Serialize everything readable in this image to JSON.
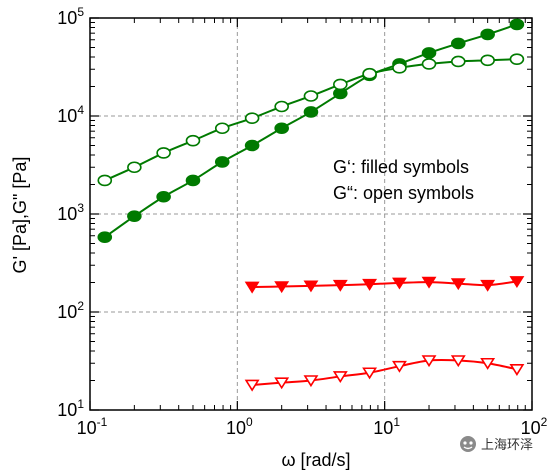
{
  "chart_data": {
    "type": "scatter",
    "title": "",
    "xlabel": "ω  [rad/s]",
    "ylabel": "G'  [Pa],G\"  [Pa]",
    "xscale": "log",
    "yscale": "log",
    "xlim": [
      0.1,
      100
    ],
    "ylim": [
      10,
      100000
    ],
    "grid": true,
    "x_ticks": [
      {
        "base": "10",
        "exp": "-1"
      },
      {
        "base": "10",
        "exp": "0"
      },
      {
        "base": "10",
        "exp": "1"
      },
      {
        "base": "10",
        "exp": "2"
      }
    ],
    "y_ticks": [
      {
        "base": "10",
        "exp": "1"
      },
      {
        "base": "10",
        "exp": "2"
      },
      {
        "base": "10",
        "exp": "3"
      },
      {
        "base": "10",
        "exp": "4"
      },
      {
        "base": "10",
        "exp": "5"
      }
    ],
    "annotations": [
      "G‘: filled symbols",
      "G“: open symbols"
    ],
    "series": [
      {
        "color": "#007a00",
        "marker": "circle",
        "filled": true,
        "x": [
          0.126,
          0.2,
          0.316,
          0.5,
          0.79,
          1.26,
          2.0,
          3.16,
          5.0,
          7.9,
          12.6,
          20,
          31.6,
          50,
          79
        ],
        "y": [
          580,
          950,
          1500,
          2200,
          3400,
          5000,
          7500,
          11000,
          17000,
          26000,
          34000,
          44000,
          55000,
          68000,
          86000
        ]
      },
      {
        "color": "#007a00",
        "marker": "circle",
        "filled": false,
        "x": [
          0.126,
          0.2,
          0.316,
          0.5,
          0.79,
          1.26,
          2.0,
          3.16,
          5.0,
          7.9,
          12.6,
          20,
          31.6,
          50,
          79
        ],
        "y": [
          2200,
          3000,
          4200,
          5600,
          7500,
          9500,
          12500,
          16000,
          21000,
          27000,
          31000,
          34000,
          36000,
          37000,
          38000
        ]
      },
      {
        "color": "#ff0000",
        "marker": "triangle-down",
        "filled": true,
        "x": [
          1.26,
          2.0,
          3.16,
          5.0,
          7.9,
          12.6,
          20,
          31.6,
          50,
          79
        ],
        "y": [
          180,
          182,
          185,
          188,
          192,
          198,
          202,
          195,
          188,
          205
        ]
      },
      {
        "color": "#ff0000",
        "marker": "triangle-down",
        "filled": false,
        "x": [
          1.26,
          2.0,
          3.16,
          5.0,
          7.9,
          12.6,
          20,
          31.6,
          50,
          79
        ],
        "y": [
          18,
          19,
          20,
          22,
          24,
          28,
          32,
          32,
          30,
          26
        ]
      }
    ]
  },
  "watermark": {
    "text": "上海环泽"
  }
}
